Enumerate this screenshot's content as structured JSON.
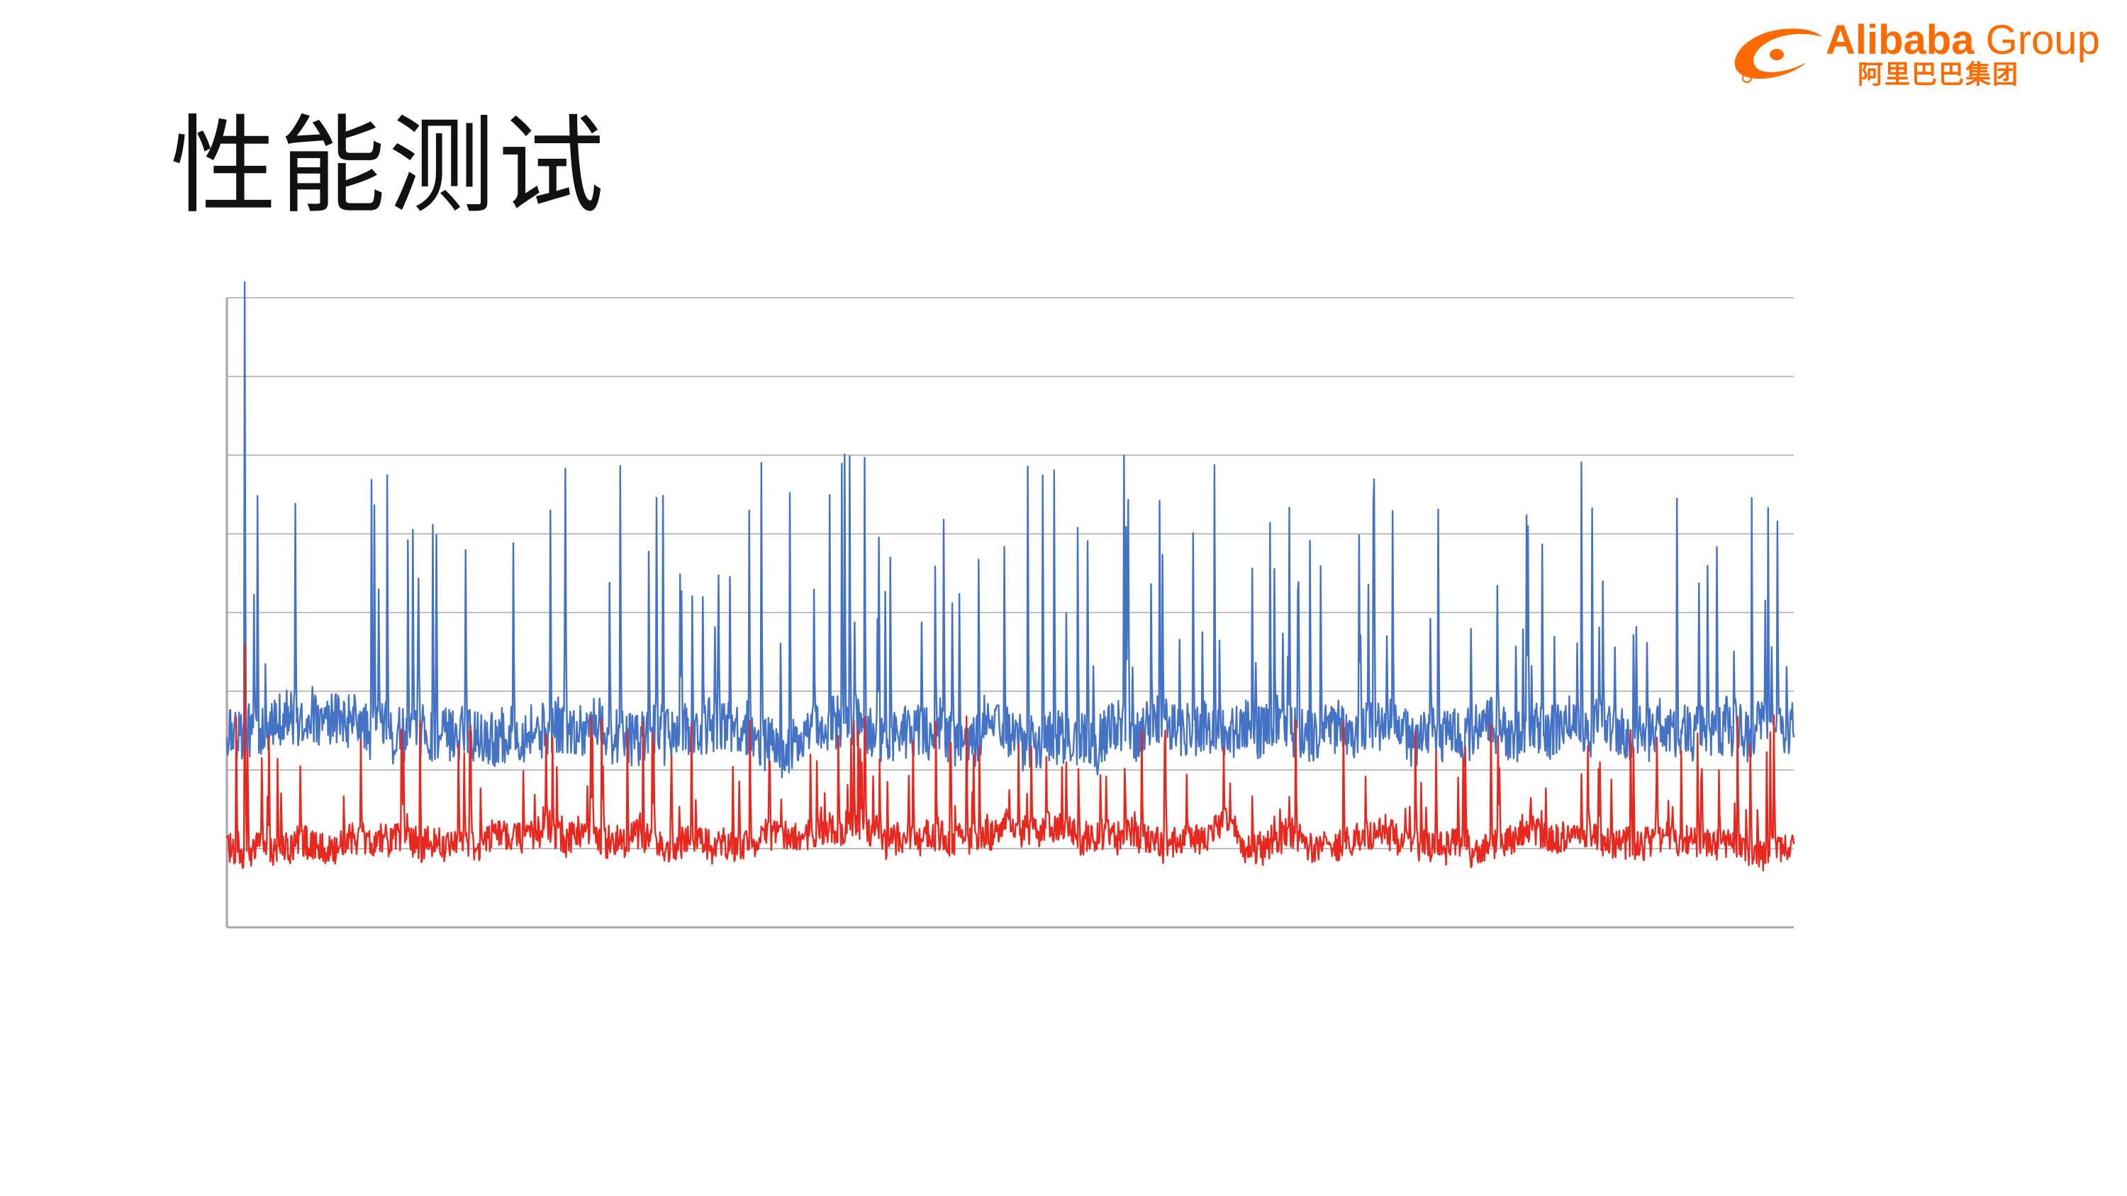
{
  "slide": {
    "title": "性能测试"
  },
  "logo": {
    "brand": "Alibaba",
    "group": "Group",
    "chinese": "阿里巴巴集团",
    "color": "#ff6a00"
  },
  "chart_data": {
    "type": "line",
    "title": "",
    "xlabel": "",
    "ylabel": "",
    "ylim": [
      0,
      8
    ],
    "xlim": [
      0,
      1000
    ],
    "grid": true,
    "gridlines": [
      1,
      2,
      3,
      4,
      5,
      6,
      7,
      8
    ],
    "series": [
      {
        "color": "#4472c4",
        "baseline": 2.5,
        "noise": 0.35,
        "spike_count": 130,
        "spike_range": [
          3.3,
          6.1
        ],
        "max": 8.2
      },
      {
        "color": "#e8281e",
        "baseline": 1.1,
        "noise": 0.2,
        "spike_count": 150,
        "spike_range": [
          1.4,
          2.7
        ],
        "max": 3.6
      }
    ]
  }
}
